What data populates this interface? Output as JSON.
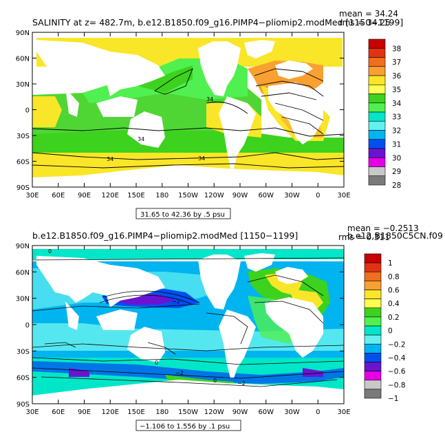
{
  "panels": [
    {
      "title": "SALINITY at z= 482.7m, b.e12.B1850.f09_g16.PIMP4−pliomip2.modMed [1150−1199]",
      "stat_mean": "mean = 34.24",
      "stat_rms": "rms = 34.25",
      "range_label": "31.65 to 42.36 by .5 psu",
      "x_ticks": [
        "30E",
        "60E",
        "90E",
        "120E",
        "150E",
        "180",
        "150W",
        "120W",
        "90W",
        "60W",
        "30W",
        "0",
        "30E"
      ],
      "y_ticks": [
        "90N",
        "60N",
        "30N",
        "0",
        "30S",
        "60S",
        "90S"
      ],
      "colorbar": {
        "labels": [
          "38",
          "37",
          "36",
          "35",
          "34",
          "33",
          "32",
          "31",
          "30",
          "29",
          "28"
        ],
        "colors": [
          "#c80000",
          "#e23214",
          "#f06e1e",
          "#f8a032",
          "#fae628",
          "#ffff50",
          "#3cd21e",
          "#50f050",
          "#00e6c8",
          "#64f0f0",
          "#00b4f0",
          "#0050f0",
          "#6a14d2",
          "#e600e6",
          "#c8c8c8",
          "#7a7a7a"
        ]
      },
      "contour_labels": [
        "34",
        "34",
        "34",
        "34"
      ]
    },
    {
      "title": "b.e12.B1850.f09_g16.PIMP4−pliomip2.modMed [1150−1199]",
      "subtitle": "b.e12.B1850C5CN.f09",
      "stat_mean": "mean = −0.2513",
      "stat_rms": "rms = 0.311",
      "range_label": "−1.106 to 1.556 by .1 psu",
      "x_ticks": [
        "30E",
        "60E",
        "90E",
        "120E",
        "150E",
        "180",
        "150W",
        "120W",
        "90W",
        "60W",
        "30W",
        "0",
        "30E"
      ],
      "y_ticks": [
        "90N",
        "60N",
        "30N",
        "0",
        "30S",
        "60S",
        "90S"
      ],
      "colorbar": {
        "labels": [
          "1",
          "0.8",
          "0.6",
          "0.4",
          "0.2",
          "0",
          "−0.2",
          "−0.4",
          "−0.6",
          "−0.8",
          "−1"
        ],
        "colors": [
          "#c80000",
          "#e23214",
          "#f06e1e",
          "#f8a032",
          "#fae628",
          "#ffff50",
          "#3cd21e",
          "#50f050",
          "#00e6c8",
          "#64f0f0",
          "#00b4f0",
          "#0050f0",
          "#6a14d2",
          "#e600e6",
          "#c8c8c8",
          "#7a7a7a"
        ]
      },
      "contour_labels": [
        "0",
        "−2",
        "0",
        "0",
        "−2",
        "−2"
      ]
    }
  ]
}
